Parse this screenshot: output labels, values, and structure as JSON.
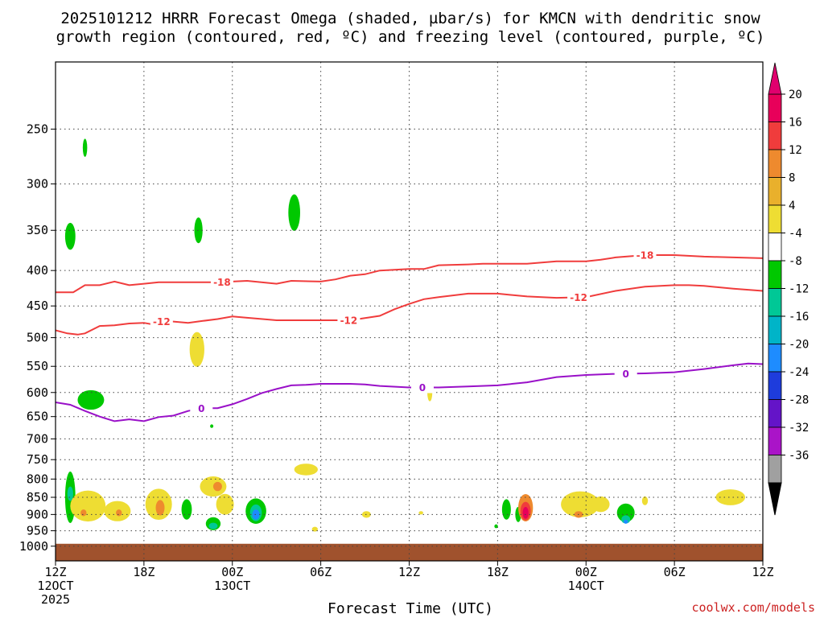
{
  "title_line1": "2025101212 HRRR Forecast Omega (shaded, µbar/s) for KMCN with dendritic snow",
  "title_line2": "growth region (contoured, red, ºC) and freezing level (contoured, purple, ºC)",
  "credit": "coolwx.com/models",
  "chart_data": {
    "type": "time-height",
    "xlabel": "Forecast Time (UTC)",
    "x_range_hours": [
      0,
      48
    ],
    "x_ticks": [
      {
        "hour": 0,
        "lines": [
          "12Z",
          "12OCT",
          "2025"
        ]
      },
      {
        "hour": 6,
        "lines": [
          "18Z"
        ]
      },
      {
        "hour": 12,
        "lines": [
          "00Z",
          "13OCT"
        ]
      },
      {
        "hour": 18,
        "lines": [
          "06Z"
        ]
      },
      {
        "hour": 24,
        "lines": [
          "12Z"
        ]
      },
      {
        "hour": 30,
        "lines": [
          "18Z"
        ]
      },
      {
        "hour": 36,
        "lines": [
          "00Z",
          "14OCT"
        ]
      },
      {
        "hour": 42,
        "lines": [
          "06Z"
        ]
      },
      {
        "hour": 48,
        "lines": [
          "12Z"
        ]
      }
    ],
    "y_range_hpa": [
      1050,
      200
    ],
    "y_ticks": [
      250,
      300,
      350,
      400,
      450,
      500,
      550,
      600,
      650,
      700,
      750,
      800,
      850,
      900,
      950,
      1000
    ],
    "grid": true,
    "colorbar": {
      "labels": [
        "20",
        "16",
        "12",
        "8",
        "4",
        "-4",
        "-8",
        "-12",
        "-16",
        "-20",
        "-24",
        "-28",
        "-32",
        "-36"
      ],
      "colors": [
        "#e8005a",
        "#f03c3c",
        "#ee8a2e",
        "#e9b02c",
        "#eedd33",
        "#ffffff",
        "#00c800",
        "#00c896",
        "#00b4c8",
        "#1e8cff",
        "#1e3cdc",
        "#6414c8",
        "#aa14c8",
        "#a0a0a0"
      ]
    },
    "contours": [
      {
        "label": "-18",
        "color": "#f03c3c",
        "label_hours": [
          11.3,
          40.0
        ],
        "points": [
          [
            0,
            430
          ],
          [
            1.2,
            430
          ],
          [
            2,
            420
          ],
          [
            3,
            420
          ],
          [
            4,
            415
          ],
          [
            5,
            420
          ],
          [
            6,
            418
          ],
          [
            7,
            416
          ],
          [
            9,
            416
          ],
          [
            10,
            416
          ],
          [
            11,
            416
          ],
          [
            13,
            414
          ],
          [
            15,
            418
          ],
          [
            16,
            414
          ],
          [
            18,
            415
          ],
          [
            19,
            412
          ],
          [
            20,
            407
          ],
          [
            21,
            405
          ],
          [
            22,
            400
          ],
          [
            24,
            398
          ],
          [
            25,
            398
          ],
          [
            26,
            393
          ],
          [
            28,
            392
          ],
          [
            29,
            391
          ],
          [
            32,
            391
          ],
          [
            34,
            388
          ],
          [
            36,
            388
          ],
          [
            37,
            386
          ],
          [
            38,
            383
          ],
          [
            40,
            380
          ],
          [
            42,
            380
          ],
          [
            44,
            382
          ],
          [
            46,
            383
          ],
          [
            48,
            384
          ]
        ]
      },
      {
        "label": "-12",
        "color": "#f03c3c",
        "label_hours": [
          7.2,
          19.9,
          35.5
        ],
        "points": [
          [
            0,
            488
          ],
          [
            0.8,
            493
          ],
          [
            1.5,
            495
          ],
          [
            2,
            493
          ],
          [
            3,
            481
          ],
          [
            4,
            480
          ],
          [
            5,
            477
          ],
          [
            6,
            476
          ],
          [
            6.5,
            478
          ],
          [
            7,
            474
          ],
          [
            8,
            474
          ],
          [
            9,
            476
          ],
          [
            10,
            473
          ],
          [
            11,
            470
          ],
          [
            12,
            466
          ],
          [
            13,
            468
          ],
          [
            15,
            472
          ],
          [
            18,
            472
          ],
          [
            20,
            472
          ],
          [
            22,
            465
          ],
          [
            23,
            455
          ],
          [
            24,
            447
          ],
          [
            25,
            440
          ],
          [
            26,
            437
          ],
          [
            28,
            432
          ],
          [
            30,
            432
          ],
          [
            32,
            436
          ],
          [
            34,
            438
          ],
          [
            36,
            437
          ],
          [
            38,
            428
          ],
          [
            40,
            422
          ],
          [
            42,
            420
          ],
          [
            43,
            420
          ],
          [
            44,
            421
          ],
          [
            46,
            425
          ],
          [
            48,
            428
          ]
        ]
      },
      {
        "label": "0",
        "color": "#9910c8",
        "label_hours": [
          9.9,
          24.9,
          38.7
        ],
        "points": [
          [
            0,
            620
          ],
          [
            1,
            625
          ],
          [
            2,
            638
          ],
          [
            3,
            650
          ],
          [
            4,
            660
          ],
          [
            5,
            656
          ],
          [
            6,
            660
          ],
          [
            7,
            651
          ],
          [
            8,
            648
          ],
          [
            9,
            638
          ],
          [
            10,
            632
          ],
          [
            11,
            632
          ],
          [
            12,
            624
          ],
          [
            13,
            613
          ],
          [
            14,
            601
          ],
          [
            15,
            593
          ],
          [
            16,
            586
          ],
          [
            17,
            585
          ],
          [
            18,
            583
          ],
          [
            20,
            583
          ],
          [
            21,
            584
          ],
          [
            22,
            587
          ],
          [
            24,
            590
          ],
          [
            26,
            590
          ],
          [
            28,
            588
          ],
          [
            30,
            586
          ],
          [
            32,
            580
          ],
          [
            34,
            570
          ],
          [
            36,
            566
          ],
          [
            38,
            564
          ],
          [
            40,
            563
          ],
          [
            42,
            561
          ],
          [
            44,
            555
          ],
          [
            46,
            548
          ],
          [
            47,
            545
          ],
          [
            48,
            546
          ]
        ]
      }
    ],
    "shaded_regions": [
      {
        "value": -6,
        "blobs": [
          [
            1.0,
            850,
            0.35,
            145
          ],
          [
            2.4,
            615,
            0.9,
            40
          ],
          [
            1.0,
            357,
            0.35,
            32
          ],
          [
            2.0,
            266,
            0.15,
            16
          ],
          [
            9.7,
            350,
            0.28,
            30
          ],
          [
            16.2,
            330,
            0.4,
            40
          ],
          [
            8.9,
            885,
            0.35,
            60
          ],
          [
            10.7,
            928,
            0.5,
            40
          ],
          [
            13.6,
            890,
            0.7,
            75
          ],
          [
            30.6,
            885,
            0.3,
            60
          ],
          [
            31.4,
            900,
            0.2,
            45
          ],
          [
            38.7,
            895,
            0.6,
            55
          ],
          [
            29.9,
            936,
            0.12,
            12
          ],
          [
            10.6,
            671,
            0.1,
            8
          ]
        ]
      },
      {
        "value": 6,
        "blobs": [
          [
            2.2,
            875,
            1.2,
            90
          ],
          [
            4.2,
            890,
            0.9,
            60
          ],
          [
            7.0,
            870,
            0.9,
            90
          ],
          [
            10.7,
            820,
            0.9,
            55
          ],
          [
            11.5,
            870,
            0.6,
            60
          ],
          [
            17.0,
            775,
            0.8,
            30
          ],
          [
            9.6,
            520,
            0.5,
            60
          ],
          [
            25.4,
            600,
            0.17,
            35
          ],
          [
            21.1,
            900,
            0.3,
            20
          ],
          [
            24.8,
            895,
            0.15,
            10
          ],
          [
            17.6,
            945,
            0.2,
            15
          ],
          [
            35.6,
            870,
            1.3,
            75
          ],
          [
            37.0,
            870,
            0.6,
            45
          ],
          [
            45.8,
            850,
            1.0,
            45
          ],
          [
            40.0,
            860,
            0.2,
            25
          ]
        ]
      },
      {
        "value": 12,
        "blobs": [
          [
            7.1,
            880,
            0.3,
            45
          ],
          [
            11.0,
            820,
            0.3,
            25
          ],
          [
            1.9,
            895,
            0.2,
            20
          ],
          [
            4.3,
            895,
            0.2,
            20
          ],
          [
            35.5,
            900,
            0.3,
            20
          ],
          [
            32.0,
            860,
            0.3,
            20
          ]
        ]
      },
      {
        "value": -12,
        "blobs": [
          [
            1.0,
            840,
            0.2,
            40
          ],
          [
            13.6,
            895,
            0.4,
            50
          ],
          [
            10.7,
            935,
            0.3,
            20
          ],
          [
            38.7,
            915,
            0.3,
            25
          ]
        ]
      },
      {
        "value": -18,
        "blobs": [
          [
            13.6,
            900,
            0.25,
            30
          ],
          [
            38.7,
            922,
            0.15,
            12
          ]
        ]
      },
      {
        "value": 14,
        "blobs": [
          [
            31.9,
            880,
            0.5,
            80
          ]
        ]
      },
      {
        "value": 17,
        "blobs": [
          [
            31.9,
            890,
            0.35,
            55
          ]
        ]
      },
      {
        "value": 20,
        "blobs": [
          [
            31.9,
            895,
            0.2,
            35
          ]
        ]
      }
    ],
    "terrain_hpa": 1000
  }
}
